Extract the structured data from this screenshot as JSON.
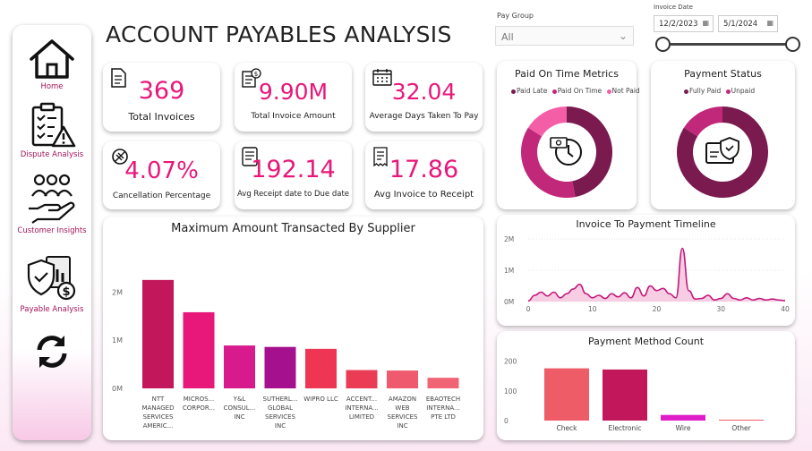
{
  "colors": {
    "accent": "#e8177a",
    "paid_late": "#7a1a4f",
    "paid_on_time": "#c2287a",
    "not_paid": "#f45ea6",
    "fully_paid": "#7a1a4f",
    "unpaid": "#c2287a"
  },
  "sidebar": {
    "items": [
      {
        "label": "Home",
        "icon": "home-icon"
      },
      {
        "label": "Dispute Analysis",
        "icon": "clipboard-warning-icon"
      },
      {
        "label": "Customer Insights",
        "icon": "people-hand-icon"
      },
      {
        "label": "Payable Analysis",
        "icon": "shield-invoice-icon"
      },
      {
        "label": "",
        "icon": "refresh-icon"
      }
    ]
  },
  "header": {
    "title": "ACCOUNT PAYABLES ANALYSIS"
  },
  "filters": {
    "pay_group_label": "Pay Group",
    "pay_group_value": "All",
    "invoice_date_label": "Invoice Date",
    "start_date": "12/2/2023",
    "end_date": "5/1/2024"
  },
  "kpis": [
    {
      "value": "369",
      "label": "Total Invoices",
      "icon": "invoice-icon"
    },
    {
      "value": "9.90M",
      "label": "Total Invoice Amount",
      "icon": "dollar-invoice-icon"
    },
    {
      "value": "32.04",
      "label": "Average Days Taken To Pay",
      "icon": "calendar-icon"
    },
    {
      "value": "4.07%",
      "label": "Cancellation Percentage",
      "icon": "cancel-icon"
    },
    {
      "value": "192.14",
      "label": "Avg Receipt date to Due date",
      "icon": "document-icon"
    },
    {
      "value": "17.86",
      "label": "Avg Invoice to Receipt",
      "icon": "receipt-icon"
    }
  ],
  "chart_data": [
    {
      "type": "pie",
      "title": "Paid On Time Metrics",
      "donut": true,
      "legend": [
        "Paid Late",
        "Paid On Time",
        "Not Paid"
      ],
      "legend_position": "top",
      "values": [
        47,
        37,
        16
      ],
      "center_icon": "payment-clock-icon"
    },
    {
      "type": "pie",
      "title": "Payment Status",
      "donut": true,
      "legend": [
        "Fully Paid",
        "Unpaid"
      ],
      "legend_position": "top",
      "values": [
        84,
        16
      ],
      "center_icon": "card-shield-icon"
    },
    {
      "type": "bar",
      "title": "Maximum Amount Transacted By Supplier",
      "categories": [
        [
          "NTT",
          "MANAGED",
          "SERVICES",
          "AMERIC..."
        ],
        [
          "MICROS...",
          "CORPOR..."
        ],
        [
          "Y&L",
          "CONSUL...",
          "INC"
        ],
        [
          "SUTHERL...",
          "GLOBAL",
          "SERVICES",
          "INC"
        ],
        [
          "WIPRO LLC"
        ],
        [
          "ACCENT...",
          "INTERNA...",
          "LIMITED"
        ],
        [
          "AMAZON",
          "WEB",
          "SERVICES",
          "INC"
        ],
        [
          "EBAOTECH",
          "INTERNA...",
          "PTE LTD"
        ]
      ],
      "values": [
        2.25,
        1.58,
        0.89,
        0.86,
        0.82,
        0.38,
        0.37,
        0.22
      ],
      "colors": [
        "#c2185b",
        "#e8177a",
        "#d81b8c",
        "#a5108f",
        "#ee3553",
        "#ea3d55",
        "#f05a6e",
        "#f06476"
      ],
      "ylim": [
        0,
        2.6
      ],
      "yticks": [
        {
          "v": 0,
          "label": "0M"
        },
        {
          "v": 1,
          "label": "1M"
        },
        {
          "v": 2,
          "label": "2M"
        }
      ]
    },
    {
      "type": "area",
      "title": "Invoice To Payment Timeline",
      "x": [
        0,
        1,
        2,
        3,
        4,
        5,
        6,
        7,
        8,
        9,
        10,
        11,
        12,
        13,
        14,
        15,
        16,
        17,
        18,
        19,
        20,
        21,
        22,
        23,
        24,
        25,
        26,
        27,
        28,
        29,
        30,
        31,
        32,
        33,
        34,
        35,
        36,
        37,
        38,
        39,
        40
      ],
      "values": [
        0.02,
        0.2,
        0.3,
        0.18,
        0.3,
        0.12,
        0.25,
        0.4,
        0.55,
        0.25,
        0.12,
        0.2,
        0.1,
        0.25,
        0.15,
        0.28,
        0.12,
        0.45,
        0.18,
        0.5,
        0.35,
        0.42,
        0.25,
        0.12,
        1.7,
        0.35,
        0.08,
        0.1,
        0.2,
        0.05,
        0.1,
        0.25,
        0.1,
        0.05,
        0.12,
        0.05,
        0.1,
        0.05,
        0.08,
        0.05,
        0.03
      ],
      "ylim": [
        0,
        2
      ],
      "xticks": [
        0,
        10,
        20,
        30,
        40
      ],
      "yticks": [
        {
          "v": 0,
          "label": "0M"
        },
        {
          "v": 1,
          "label": "1M"
        },
        {
          "v": 2,
          "label": "2M"
        }
      ]
    },
    {
      "type": "bar",
      "title": "Payment Method Count",
      "categories": [
        "Check",
        "Electronic",
        "Wire",
        "Other"
      ],
      "values": [
        176,
        172,
        19,
        3
      ],
      "colors": [
        "#ee5c67",
        "#c2185b",
        "#e01ec8",
        "#ee5c67"
      ],
      "ylim": [
        0,
        220
      ],
      "yticks": [
        {
          "v": 0,
          "label": "0"
        },
        {
          "v": 100,
          "label": "100"
        },
        {
          "v": 200,
          "label": "200"
        }
      ]
    }
  ]
}
